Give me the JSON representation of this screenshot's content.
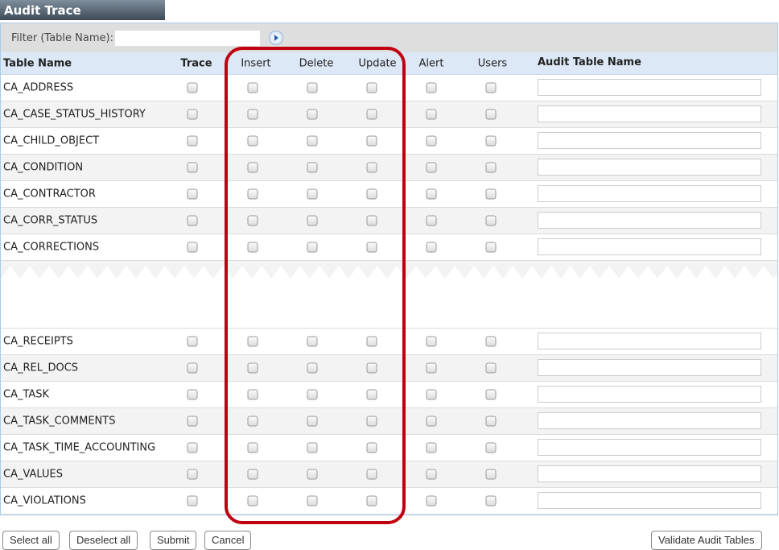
{
  "title": "Audit Trace",
  "filter": {
    "label": "Filter (Table Name):",
    "value": ""
  },
  "columns": [
    "Table Name",
    "Trace",
    "Insert",
    "Delete",
    "Update",
    "Alert",
    "Users",
    "Audit Table Name"
  ],
  "rows_top": [
    "CA_ADDRESS",
    "CA_CASE_STATUS_HISTORY",
    "CA_CHILD_OBJECT",
    "CA_CONDITION",
    "CA_CONTRACTOR",
    "CA_CORR_STATUS",
    "CA_CORRECTIONS"
  ],
  "rows_bottom": [
    "CA_RECEIPTS",
    "CA_REL_DOCS",
    "CA_TASK",
    "CA_TASK_COMMENTS",
    "CA_TASK_TIME_ACCOUNTING",
    "CA_VALUES",
    "CA_VIOLATIONS"
  ],
  "buttons": {
    "select_all": "Select all",
    "deselect_all": "Deselect all",
    "submit": "Submit",
    "cancel": "Cancel",
    "validate": "Validate Audit Tables"
  },
  "highlight_color": "#c00010"
}
